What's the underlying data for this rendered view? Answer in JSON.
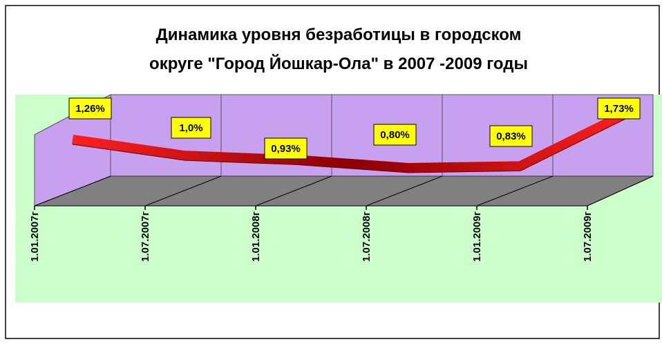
{
  "chart_data": {
    "type": "line",
    "title": [
      "Динамика уровня безработицы в городском",
      "округе \"Город Йошкар-Ола\" в 2007 -2009 годы"
    ],
    "categories": [
      "1.01.2007г",
      "1.07.2007г",
      "1.01.2008г",
      "1.07.2008г",
      "1.01.2009г",
      "1.07.2009г"
    ],
    "values": [
      1.26,
      1.0,
      0.93,
      0.8,
      0.83,
      1.73
    ],
    "value_labels": [
      "1,26%",
      "1,0%",
      "0,93%",
      "0,80%",
      "0,83%",
      "1,73%"
    ],
    "color": "#cc0000"
  }
}
